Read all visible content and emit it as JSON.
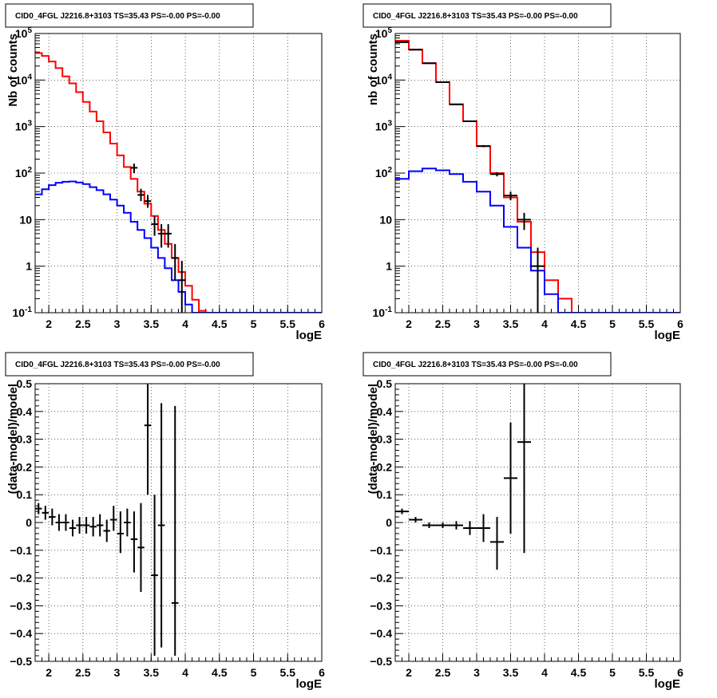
{
  "chart_data": [
    {
      "type": "line",
      "title": "CID0_4FGL J2216.8+3103 TS=35.43 PS=-0.00 PS=-0.00",
      "xlabel": "logE",
      "ylabel": "Nb of counts",
      "log_y": true,
      "grid": true,
      "xlim": [
        1.8,
        6
      ],
      "ylim": [
        0.1,
        100000
      ],
      "x_ticks": [
        "2",
        "2.5",
        "3",
        "3.5",
        "4",
        "4.5",
        "5",
        "5.5",
        "6"
      ],
      "y_ticks": [
        "10^-1",
        "1",
        "10",
        "10^2",
        "10^3",
        "10^4",
        "10^5"
      ],
      "series": [
        {
          "style": "step",
          "color": "#ff0000",
          "edges": [
            1.8,
            1.9,
            2.0,
            2.1,
            2.2,
            2.3,
            2.4,
            2.5,
            2.6,
            2.7,
            2.8,
            2.9,
            3.0,
            3.1,
            3.2,
            3.3,
            3.4,
            3.5,
            3.6,
            3.7,
            3.8,
            3.9,
            4.0,
            4.1,
            4.2,
            4.3,
            6.0
          ],
          "values": [
            38000,
            33000,
            25000,
            18000,
            12000,
            8500,
            5500,
            3400,
            2100,
            1300,
            750,
            430,
            240,
            135,
            75,
            40,
            22,
            12,
            6,
            3,
            1.5,
            0.75,
            0.38,
            0.19,
            0.11,
            0.1
          ]
        },
        {
          "style": "step",
          "color": "#0000ff",
          "edges": [
            1.8,
            1.9,
            2.0,
            2.1,
            2.2,
            2.3,
            2.4,
            2.5,
            2.6,
            2.7,
            2.8,
            2.9,
            3.0,
            3.1,
            3.2,
            3.3,
            3.4,
            3.5,
            3.6,
            3.7,
            3.8,
            3.9,
            4.0,
            4.1,
            6.0
          ],
          "values": [
            35,
            45,
            55,
            62,
            65,
            66,
            63,
            58,
            50,
            43,
            35,
            27,
            20,
            14,
            9,
            6,
            4,
            2.5,
            1.5,
            0.9,
            0.5,
            0.28,
            0.15,
            0.1
          ]
        },
        {
          "style": "errorbar",
          "color": "#000000",
          "x": [
            3.25,
            3.35,
            3.45,
            3.55,
            3.65,
            3.75,
            3.85,
            3.95
          ],
          "y": [
            130,
            34,
            25,
            8,
            5,
            5,
            1.5,
            0.5
          ],
          "xerr": 0.05,
          "ylow": [
            100,
            25,
            18,
            4.5,
            2.5,
            2.5,
            0.5,
            0.1
          ],
          "yhigh": [
            160,
            46,
            34,
            12,
            8,
            8,
            3,
            1.3
          ]
        }
      ]
    },
    {
      "type": "line",
      "title": "CID0_4FGL J2216.8+3103 TS=35.43 PS=-0.00 PS=-0.00",
      "xlabel": "logE",
      "ylabel": "nb of counts",
      "log_y": true,
      "grid": true,
      "xlim": [
        1.8,
        6
      ],
      "ylim": [
        0.1,
        100000
      ],
      "x_ticks": [
        "2",
        "2.5",
        "3",
        "3.5",
        "4",
        "4.5",
        "5",
        "5.5",
        "6"
      ],
      "y_ticks": [
        "10^-1",
        "1",
        "10",
        "10^2",
        "10^3",
        "10^4",
        "10^5"
      ],
      "series": [
        {
          "style": "step",
          "color": "#ff0000",
          "edges": [
            1.8,
            2.0,
            2.2,
            2.4,
            2.6,
            2.8,
            3.0,
            3.2,
            3.4,
            3.6,
            3.8,
            4.0,
            4.2,
            4.4,
            6.0
          ],
          "values": [
            70000,
            45000,
            23000,
            9000,
            3000,
            1300,
            380,
            100,
            30,
            9,
            2,
            0.5,
            0.2,
            0.1
          ]
        },
        {
          "style": "step",
          "color": "#0000ff",
          "edges": [
            1.8,
            2.0,
            2.2,
            2.4,
            2.6,
            2.8,
            3.0,
            3.2,
            3.4,
            3.6,
            3.8,
            4.0,
            4.2,
            6.0
          ],
          "values": [
            75,
            110,
            125,
            115,
            95,
            65,
            40,
            20,
            7,
            2.5,
            0.8,
            0.25,
            0.1
          ]
        },
        {
          "style": "errorbar",
          "color": "#000000",
          "x": [
            1.9,
            2.1,
            2.3,
            2.5,
            2.7,
            2.9,
            3.1,
            3.3,
            3.5,
            3.7,
            3.9
          ],
          "y": [
            65000,
            45000,
            23000,
            9000,
            3000,
            1300,
            380,
            95,
            33,
            10,
            1
          ],
          "xerr": 0.1,
          "ylow": [
            64000,
            44500,
            22700,
            8900,
            2950,
            1260,
            360,
            85,
            26,
            6,
            0.1
          ],
          "yhigh": [
            66000,
            45500,
            23300,
            9100,
            3050,
            1340,
            400,
            105,
            40,
            14,
            2.5
          ]
        }
      ]
    },
    {
      "type": "scatter",
      "title": "CID0_4FGL J2216.8+3103 TS=35.43 PS=-0.00 PS=-0.00",
      "xlabel": "logE",
      "ylabel": "(data-model)/model",
      "grid": true,
      "xlim": [
        1.8,
        6
      ],
      "ylim": [
        -0.5,
        0.5
      ],
      "x_ticks": [
        "2",
        "2.5",
        "3",
        "3.5",
        "4",
        "4.5",
        "5",
        "5.5",
        "6"
      ],
      "y_ticks": [
        "−0.5",
        "−0.4",
        "−0.3",
        "−0.2",
        "−0.1",
        "0",
        "0.1",
        "0.2",
        "0.3",
        "0.4",
        "0.5"
      ],
      "series": [
        {
          "style": "errorbar",
          "color": "#000000",
          "x": [
            1.85,
            1.95,
            2.05,
            2.15,
            2.25,
            2.35,
            2.45,
            2.55,
            2.65,
            2.75,
            2.85,
            2.95,
            3.05,
            3.15,
            3.25,
            3.35,
            3.45,
            3.55,
            3.65,
            3.85
          ],
          "y": [
            0.05,
            0.035,
            0.02,
            0.0,
            0.0,
            -0.02,
            -0.01,
            -0.01,
            -0.015,
            -0.01,
            -0.03,
            0.01,
            -0.04,
            0.0,
            -0.06,
            -0.09,
            0.35,
            -0.19,
            -0.01,
            -0.29
          ],
          "xerr": 0.05,
          "ylow": [
            0.03,
            0.01,
            -0.01,
            -0.03,
            -0.03,
            -0.05,
            -0.04,
            -0.04,
            -0.05,
            -0.05,
            -0.07,
            -0.03,
            -0.11,
            -0.05,
            -0.18,
            -0.25,
            0.1,
            -0.48,
            -0.45,
            -0.48
          ],
          "yhigh": [
            0.07,
            0.06,
            0.05,
            0.03,
            0.03,
            0.01,
            0.02,
            0.02,
            0.02,
            0.03,
            0.01,
            0.06,
            0.04,
            0.05,
            0.04,
            0.07,
            0.5,
            0.1,
            0.43,
            0.42
          ]
        }
      ]
    },
    {
      "type": "scatter",
      "title": "CID0_4FGL J2216.8+3103 TS=35.43 PS=-0.00 PS=-0.00",
      "xlabel": "logE",
      "ylabel": "(data-model)/model",
      "grid": true,
      "xlim": [
        1.8,
        6
      ],
      "ylim": [
        -0.5,
        0.5
      ],
      "x_ticks": [
        "2",
        "2.5",
        "3",
        "3.5",
        "4",
        "4.5",
        "5",
        "5.5",
        "6"
      ],
      "y_ticks": [
        "−0.5",
        "−0.4",
        "−0.3",
        "−0.2",
        "−0.1",
        "0",
        "0.1",
        "0.2",
        "0.3",
        "0.4",
        "0.5"
      ],
      "series": [
        {
          "style": "errorbar",
          "color": "#000000",
          "x": [
            1.9,
            2.1,
            2.3,
            2.5,
            2.7,
            2.9,
            3.1,
            3.3,
            3.5,
            3.7
          ],
          "y": [
            0.04,
            0.01,
            -0.01,
            -0.01,
            -0.01,
            -0.02,
            -0.02,
            -0.07,
            0.16,
            0.29
          ],
          "xerr": 0.1,
          "ylow": [
            0.03,
            0.0,
            -0.02,
            -0.02,
            -0.025,
            -0.045,
            -0.07,
            -0.17,
            -0.04,
            -0.11
          ],
          "yhigh": [
            0.05,
            0.02,
            0.0,
            0.0,
            0.005,
            0.005,
            0.03,
            0.02,
            0.36,
            0.5
          ]
        }
      ]
    }
  ]
}
